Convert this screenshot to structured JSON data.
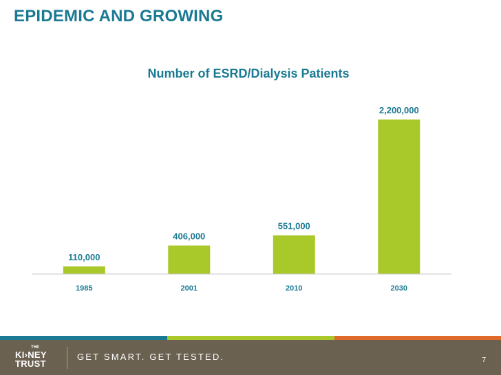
{
  "slide": {
    "title": "EPIDEMIC AND GROWING",
    "page_number": "7"
  },
  "chart_data": {
    "type": "bar",
    "title": "Number of ESRD/Dialysis Patients",
    "categories": [
      "1985",
      "2001",
      "2010",
      "2030"
    ],
    "values": [
      110000,
      406000,
      551000,
      2200000
    ],
    "value_labels": [
      "110,000",
      "406,000",
      "551,000",
      "2,200,000"
    ],
    "ylim": [
      0,
      2200000
    ],
    "xlabel": "",
    "ylabel": "",
    "grid": false,
    "legend": "none",
    "bar_color": "#a9c92b",
    "axis_color": "#c8c8c8",
    "label_color": "#1b7a93",
    "title_color": "#1b7a93"
  },
  "footer": {
    "logo_the": "THE",
    "logo_line1": "KI›NEY",
    "logo_line2": "TRUST",
    "tagline": "GET SMART. GET TESTED.",
    "stripe_colors": [
      "#1b7a93",
      "#a9c92b",
      "#e06a2c"
    ],
    "background_color": "#6b6151"
  }
}
